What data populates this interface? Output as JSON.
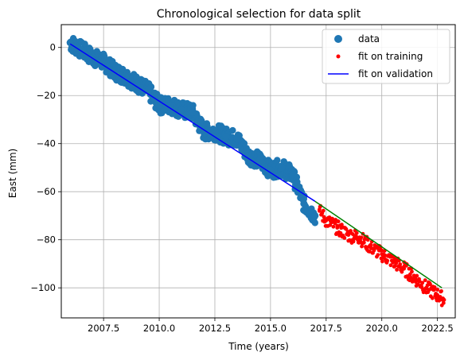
{
  "chart_data": {
    "type": "scatter",
    "title": "Chronological selection for data split",
    "xlabel": "Time (years)",
    "ylabel": "East (mm)",
    "xlim": [
      2005.6,
      2023.3
    ],
    "ylim": [
      -112.5,
      9.5
    ],
    "xticks": [
      2007.5,
      2010.0,
      2012.5,
      2015.0,
      2017.5,
      2020.0,
      2022.5
    ],
    "xtick_labels": [
      "2007.5",
      "2010.0",
      "2012.5",
      "2015.0",
      "2017.5",
      "2020.0",
      "2022.5"
    ],
    "yticks": [
      0,
      -20,
      -40,
      -60,
      -80,
      -100
    ],
    "ytick_labels": [
      "0",
      "−20",
      "−40",
      "−60",
      "−80",
      "−100"
    ],
    "grid": true,
    "legend_position": "top-right",
    "legend": [
      "data",
      "fit on training",
      "fit on validation"
    ],
    "colors": {
      "data": "#1f77b4",
      "fit_on_training": "#ff0000",
      "fit_on_validation": "#0000ff",
      "validation_fit_line": "#008000"
    },
    "series": [
      {
        "name": "data",
        "kind": "scatter",
        "x": [
          2006.0,
          2006.5,
          2007.0,
          2007.5,
          2008.0,
          2008.5,
          2009.0,
          2009.5,
          2010.0,
          2010.5,
          2011.0,
          2011.5,
          2012.0,
          2012.5,
          2013.0,
          2013.5,
          2014.0,
          2014.5,
          2015.0,
          2015.5,
          2016.0,
          2016.5,
          2017.0
        ],
        "y": [
          2,
          -1,
          -4,
          -6,
          -10,
          -12,
          -15,
          -18,
          -24,
          -24,
          -26,
          -27,
          -35,
          -35,
          -37,
          -38,
          -45,
          -47,
          -51,
          -50,
          -53,
          -65,
          -70
        ]
      },
      {
        "name": "fit on training",
        "kind": "scatter",
        "x": [
          2017.2,
          2017.5,
          2018.0,
          2018.5,
          2019.0,
          2019.5,
          2020.0,
          2020.5,
          2021.0,
          2021.5,
          2022.0,
          2022.5,
          2022.8
        ],
        "y": [
          -68,
          -72,
          -75,
          -78,
          -79,
          -83,
          -86,
          -89,
          -92,
          -96,
          -100,
          -103,
          -105
        ]
      },
      {
        "name": "fit on validation",
        "kind": "line",
        "x": [
          2006.0,
          2017.0
        ],
        "y": [
          1.5,
          -64
        ]
      },
      {
        "kind": "line",
        "x": [
          2017.0,
          2022.7
        ],
        "y": [
          -64,
          -100
        ]
      }
    ]
  }
}
